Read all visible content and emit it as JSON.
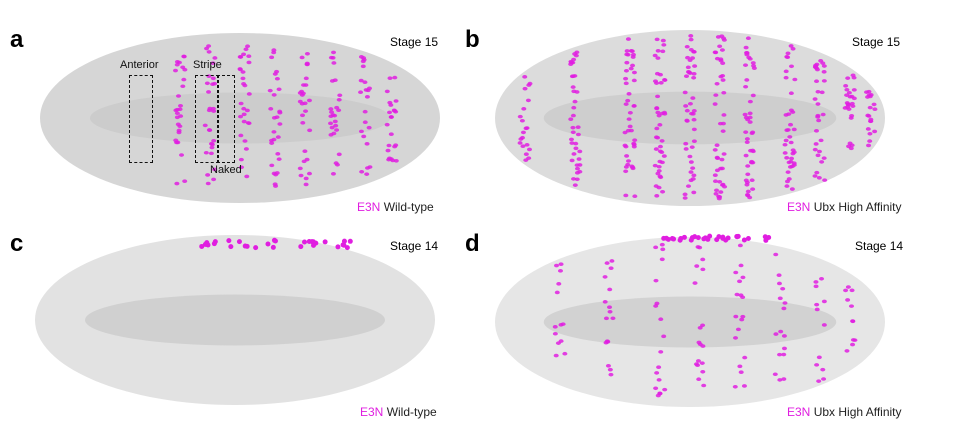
{
  "panels": [
    {
      "letter": "a",
      "stage": "Stage 15",
      "marker": "E3N",
      "genotype": "Wild-type"
    },
    {
      "letter": "b",
      "stage": "Stage 15",
      "marker": "E3N",
      "genotype": "Ubx High Affinity"
    },
    {
      "letter": "c",
      "stage": "Stage 14",
      "marker": "E3N",
      "genotype": "Wild-type"
    },
    {
      "letter": "d",
      "stage": "Stage 14",
      "marker": "E3N",
      "genotype": "Ubx High Affinity"
    }
  ],
  "regions": {
    "anterior": "Anterior",
    "stripe": "Stripe",
    "naked": "Naked"
  },
  "colors": {
    "marker": "#e01ee0",
    "embryo": "#d0d0d0"
  }
}
